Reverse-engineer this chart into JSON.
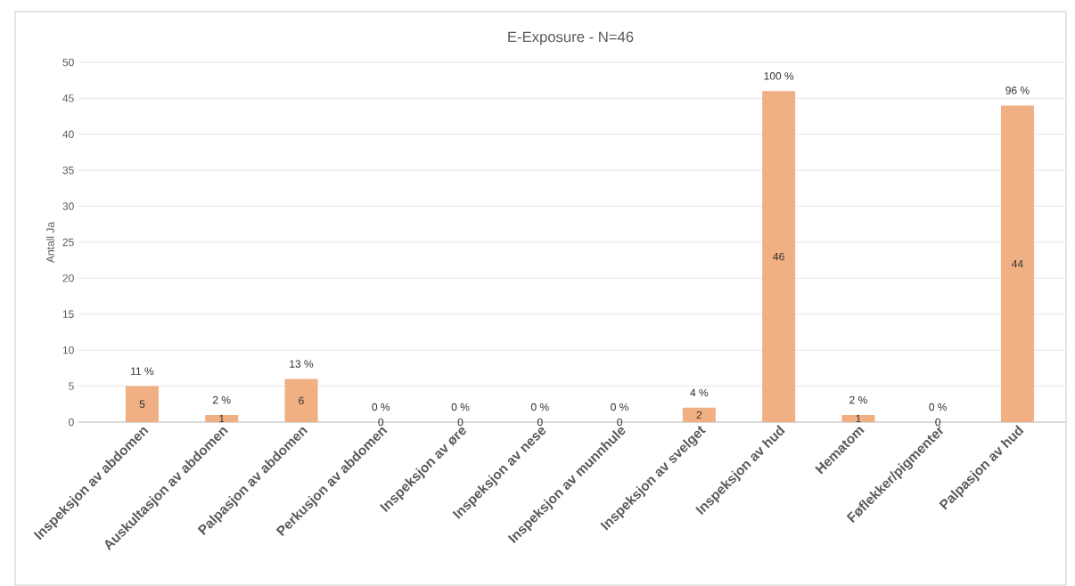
{
  "chart_data": {
    "type": "bar",
    "title": "E-Exposure - N=46",
    "ylabel": "Antall Ja",
    "categories": [
      "Inspeksjon av abdomen",
      "Auskultasjon av abdomen",
      "Palpasjon av abdomen",
      "Perkusjon av abdomen",
      "Inspeksjon av øre",
      "Inspeksjon av nese",
      "Inspeksjon av munnhule",
      "Inspeksjon av svelget",
      "Inspeksjon av hud",
      "Hematom",
      "Føflekker/pigmenter",
      "Palpasjon av hud"
    ],
    "values": [
      5,
      1,
      6,
      0,
      0,
      0,
      0,
      2,
      46,
      1,
      0,
      44
    ],
    "annotations": [
      {
        "text": "11 %",
        "x": "Inspeksjon av abdomen",
        "y": 5
      },
      {
        "text": "2 %",
        "x": "Auskultasjon av abdomen",
        "y": 1
      },
      {
        "text": "13 %",
        "x": "Palpasjon av abdomen",
        "y": 6
      },
      {
        "text": "0 %",
        "x": "Perkusjon av abdomen",
        "y": 0
      },
      {
        "text": "0 %",
        "x": "Inspeksjon av øre",
        "y": 0
      },
      {
        "text": "0 %",
        "x": "Inspeksjon av nese",
        "y": 0
      },
      {
        "text": "0 %",
        "x": "Inspeksjon av munnhule",
        "y": 0
      },
      {
        "text": "4 %",
        "x": "Inspeksjon av svelget",
        "y": 2
      },
      {
        "text": "100 %",
        "x": "Inspeksjon av hud",
        "y": 46
      },
      {
        "text": "2 %",
        "x": "Hematom",
        "y": 1
      },
      {
        "text": "0 %",
        "x": "Føflekker/pigmenter",
        "y": 0
      },
      {
        "text": "96 %",
        "x": "Palpasjon av hud",
        "y": 44
      }
    ],
    "data_labels": true,
    "color": "#f0b083",
    "ylim": [
      0,
      50
    ],
    "yticks": [
      0,
      5,
      10,
      15,
      20,
      25,
      30,
      35,
      40,
      45,
      50
    ],
    "grid": "y"
  }
}
